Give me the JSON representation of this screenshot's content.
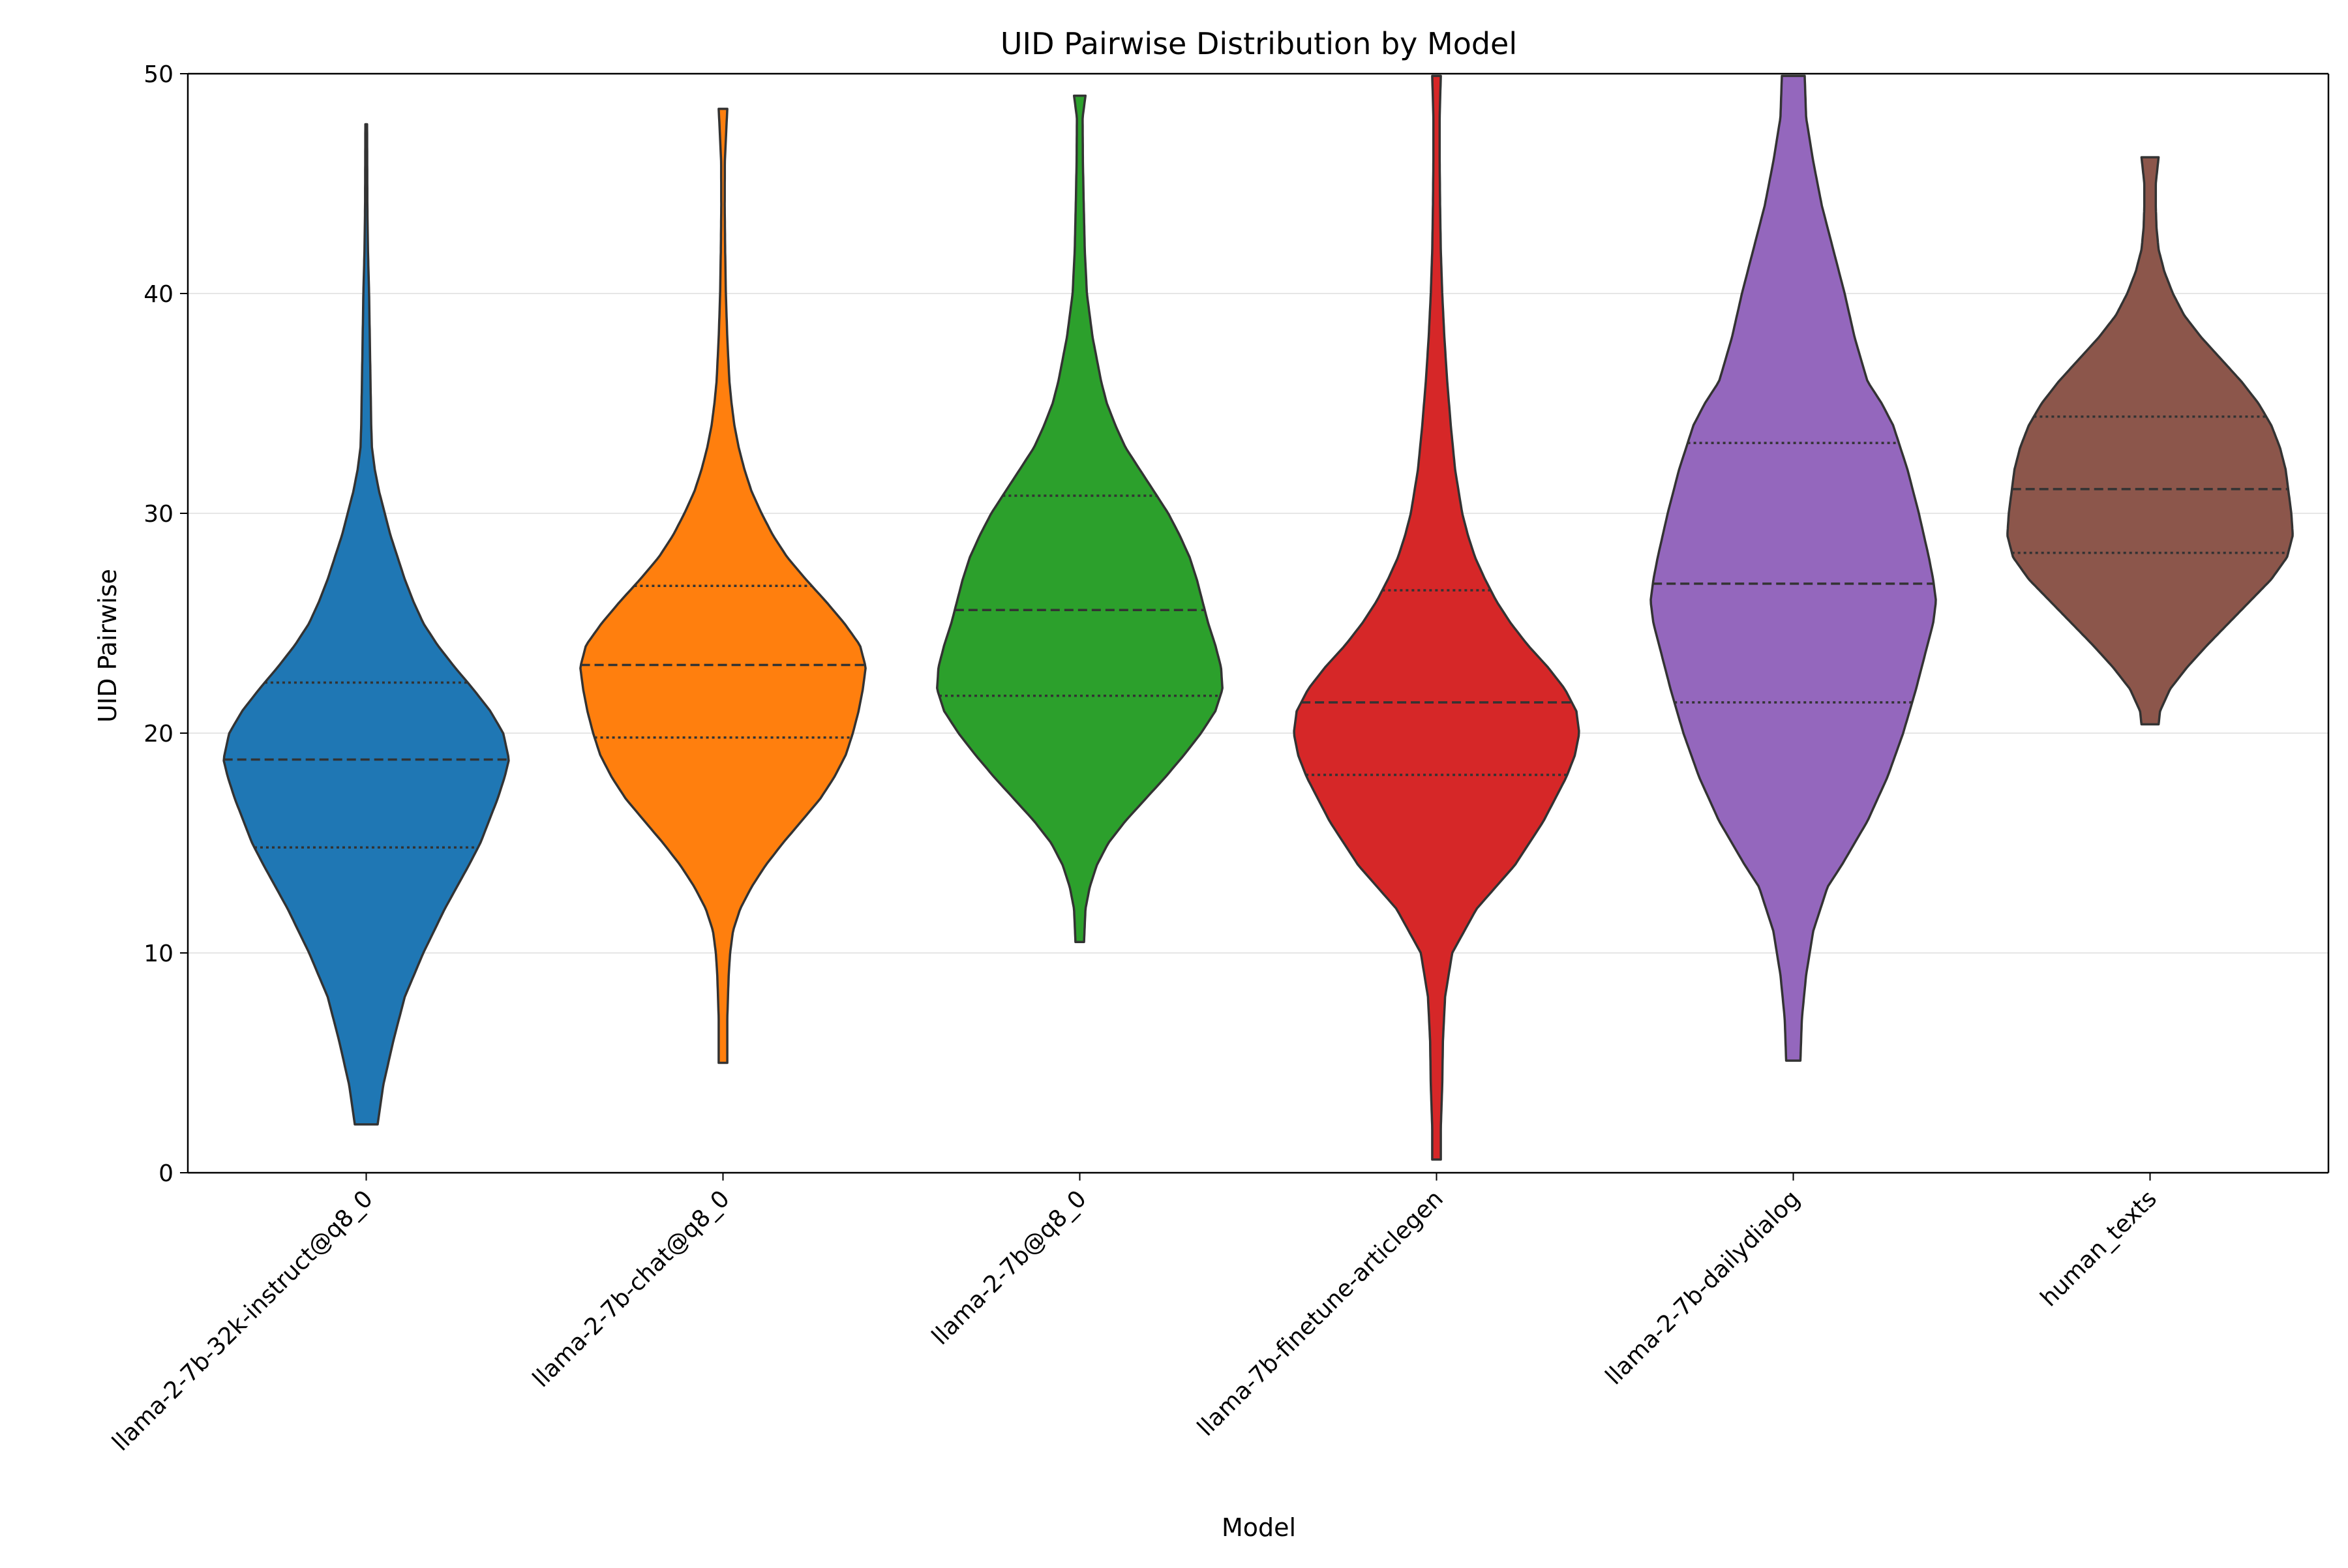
{
  "chart_data": {
    "type": "violin",
    "title": "UID Pairwise Distribution by Model",
    "xlabel": "Model",
    "ylabel": "UID Pairwise",
    "ylim": [
      0,
      50
    ],
    "yticks": [
      0,
      10,
      20,
      30,
      40,
      50
    ],
    "grid": {
      "y": true,
      "x": false
    },
    "legend": "none",
    "categories": [
      "llama-2-7b-32k-instruct@q8_0",
      "llama-2-7b-chat@q8_0",
      "llama-2-7b@q8_0",
      "llama-7b-finetune-articlegen",
      "llama-2-7b-dailydialog",
      "human_texts"
    ],
    "series": [
      {
        "category": "llama-2-7b-32k-instruct@q8_0",
        "color": "#1f77b4",
        "min": 2.2,
        "max": 47.7,
        "q1": 14.8,
        "median": 18.8,
        "q3": 22.3,
        "density": [
          [
            2.2,
            0.08
          ],
          [
            4,
            0.12
          ],
          [
            6,
            0.19
          ],
          [
            8,
            0.27
          ],
          [
            10,
            0.4
          ],
          [
            12,
            0.55
          ],
          [
            14,
            0.72
          ],
          [
            15,
            0.8
          ],
          [
            16,
            0.86
          ],
          [
            17,
            0.92
          ],
          [
            18,
            0.97
          ],
          [
            18.8,
            1.0
          ],
          [
            20,
            0.96
          ],
          [
            21,
            0.87
          ],
          [
            22,
            0.75
          ],
          [
            23,
            0.62
          ],
          [
            24,
            0.5
          ],
          [
            25,
            0.4
          ],
          [
            26,
            0.33
          ],
          [
            27,
            0.27
          ],
          [
            28,
            0.22
          ],
          [
            29,
            0.17
          ],
          [
            30,
            0.13
          ],
          [
            31,
            0.09
          ],
          [
            32,
            0.06
          ],
          [
            33,
            0.04
          ],
          [
            34,
            0.035
          ],
          [
            36,
            0.03
          ],
          [
            38,
            0.025
          ],
          [
            40,
            0.02
          ],
          [
            42,
            0.012
          ],
          [
            44,
            0.008
          ],
          [
            47.7,
            0.006
          ]
        ]
      },
      {
        "category": "llama-2-7b-chat@q8_0",
        "color": "#ff7f0e",
        "min": 5.0,
        "max": 48.4,
        "q1": 19.8,
        "median": 23.1,
        "q3": 26.7,
        "density": [
          [
            5,
            0.03
          ],
          [
            7,
            0.03
          ],
          [
            9,
            0.04
          ],
          [
            10,
            0.05
          ],
          [
            11,
            0.07
          ],
          [
            12,
            0.12
          ],
          [
            13,
            0.2
          ],
          [
            14,
            0.3
          ],
          [
            15,
            0.42
          ],
          [
            16,
            0.55
          ],
          [
            17,
            0.68
          ],
          [
            18,
            0.78
          ],
          [
            19,
            0.86
          ],
          [
            20,
            0.91
          ],
          [
            21,
            0.95
          ],
          [
            22,
            0.98
          ],
          [
            23,
            1.0
          ],
          [
            24,
            0.96
          ],
          [
            25,
            0.85
          ],
          [
            26,
            0.72
          ],
          [
            27,
            0.58
          ],
          [
            28,
            0.45
          ],
          [
            29,
            0.35
          ],
          [
            30,
            0.27
          ],
          [
            31,
            0.2
          ],
          [
            32,
            0.15
          ],
          [
            33,
            0.11
          ],
          [
            34,
            0.08
          ],
          [
            35,
            0.06
          ],
          [
            36,
            0.045
          ],
          [
            38,
            0.03
          ],
          [
            40,
            0.02
          ],
          [
            42,
            0.015
          ],
          [
            44,
            0.012
          ],
          [
            46,
            0.013
          ],
          [
            48.4,
            0.03
          ]
        ]
      },
      {
        "category": "llama-2-7b@q8_0",
        "color": "#2ca02c",
        "min": 10.5,
        "max": 49.0,
        "q1": 21.7,
        "median": 25.6,
        "q3": 30.8,
        "density": [
          [
            10.5,
            0.03
          ],
          [
            12,
            0.04
          ],
          [
            13,
            0.07
          ],
          [
            14,
            0.12
          ],
          [
            15,
            0.2
          ],
          [
            16,
            0.32
          ],
          [
            17,
            0.46
          ],
          [
            18,
            0.6
          ],
          [
            19,
            0.73
          ],
          [
            20,
            0.85
          ],
          [
            21,
            0.95
          ],
          [
            22,
            1.0
          ],
          [
            23,
            0.99
          ],
          [
            24,
            0.95
          ],
          [
            25,
            0.9
          ],
          [
            26,
            0.86
          ],
          [
            27,
            0.82
          ],
          [
            28,
            0.77
          ],
          [
            29,
            0.7
          ],
          [
            30,
            0.62
          ],
          [
            31,
            0.52
          ],
          [
            32,
            0.42
          ],
          [
            33,
            0.32
          ],
          [
            34,
            0.25
          ],
          [
            35,
            0.19
          ],
          [
            36,
            0.15
          ],
          [
            37,
            0.12
          ],
          [
            38,
            0.09
          ],
          [
            39,
            0.07
          ],
          [
            40,
            0.05
          ],
          [
            42,
            0.035
          ],
          [
            44,
            0.028
          ],
          [
            46,
            0.022
          ],
          [
            48,
            0.02
          ],
          [
            49,
            0.04
          ]
        ]
      },
      {
        "category": "llama-7b-finetune-articlegen",
        "color": "#d62728",
        "min": 0.6,
        "max": 49.9,
        "q1": 18.1,
        "median": 21.4,
        "q3": 26.5,
        "density": [
          [
            0.6,
            0.03
          ],
          [
            2,
            0.03
          ],
          [
            4,
            0.04
          ],
          [
            6,
            0.045
          ],
          [
            8,
            0.06
          ],
          [
            10,
            0.11
          ],
          [
            12,
            0.28
          ],
          [
            14,
            0.55
          ],
          [
            16,
            0.75
          ],
          [
            18,
            0.91
          ],
          [
            19,
            0.97
          ],
          [
            20,
            1.0
          ],
          [
            21,
            0.98
          ],
          [
            22,
            0.9
          ],
          [
            23,
            0.78
          ],
          [
            24,
            0.64
          ],
          [
            25,
            0.52
          ],
          [
            26,
            0.42
          ],
          [
            27,
            0.34
          ],
          [
            28,
            0.27
          ],
          [
            29,
            0.22
          ],
          [
            30,
            0.18
          ],
          [
            32,
            0.13
          ],
          [
            34,
            0.1
          ],
          [
            36,
            0.075
          ],
          [
            38,
            0.055
          ],
          [
            40,
            0.04
          ],
          [
            42,
            0.03
          ],
          [
            44,
            0.025
          ],
          [
            46,
            0.022
          ],
          [
            48,
            0.022
          ],
          [
            49.9,
            0.03
          ]
        ]
      },
      {
        "category": "llama-2-7b-dailydialog",
        "color": "#9467bd",
        "min": 5.1,
        "max": 49.9,
        "q1": 21.4,
        "median": 26.8,
        "q3": 33.2,
        "density": [
          [
            5.1,
            0.05
          ],
          [
            7,
            0.06
          ],
          [
            9,
            0.09
          ],
          [
            11,
            0.14
          ],
          [
            13,
            0.24
          ],
          [
            14,
            0.34
          ],
          [
            16,
            0.52
          ],
          [
            18,
            0.66
          ],
          [
            20,
            0.77
          ],
          [
            22,
            0.86
          ],
          [
            24,
            0.94
          ],
          [
            25,
            0.98
          ],
          [
            26,
            1.0
          ],
          [
            27,
            0.98
          ],
          [
            28,
            0.95
          ],
          [
            30,
            0.88
          ],
          [
            32,
            0.8
          ],
          [
            34,
            0.7
          ],
          [
            35,
            0.62
          ],
          [
            36,
            0.52
          ],
          [
            38,
            0.43
          ],
          [
            40,
            0.36
          ],
          [
            42,
            0.28
          ],
          [
            44,
            0.2
          ],
          [
            46,
            0.14
          ],
          [
            48,
            0.09
          ],
          [
            49.9,
            0.08
          ]
        ]
      },
      {
        "category": "human_texts",
        "color": "#8c564b",
        "min": 20.4,
        "max": 46.2,
        "q1": 28.2,
        "median": 31.1,
        "q3": 34.4,
        "density": [
          [
            20.4,
            0.06
          ],
          [
            21,
            0.07
          ],
          [
            22,
            0.14
          ],
          [
            23,
            0.26
          ],
          [
            24,
            0.4
          ],
          [
            25,
            0.55
          ],
          [
            26,
            0.7
          ],
          [
            27,
            0.85
          ],
          [
            28,
            0.96
          ],
          [
            29,
            1.0
          ],
          [
            30,
            0.99
          ],
          [
            31,
            0.97
          ],
          [
            32,
            0.95
          ],
          [
            33,
            0.91
          ],
          [
            34,
            0.85
          ],
          [
            35,
            0.76
          ],
          [
            36,
            0.64
          ],
          [
            37,
            0.5
          ],
          [
            38,
            0.36
          ],
          [
            39,
            0.24
          ],
          [
            40,
            0.16
          ],
          [
            41,
            0.1
          ],
          [
            42,
            0.06
          ],
          [
            43,
            0.045
          ],
          [
            44,
            0.04
          ],
          [
            45,
            0.04
          ],
          [
            46.2,
            0.06
          ]
        ]
      }
    ]
  }
}
